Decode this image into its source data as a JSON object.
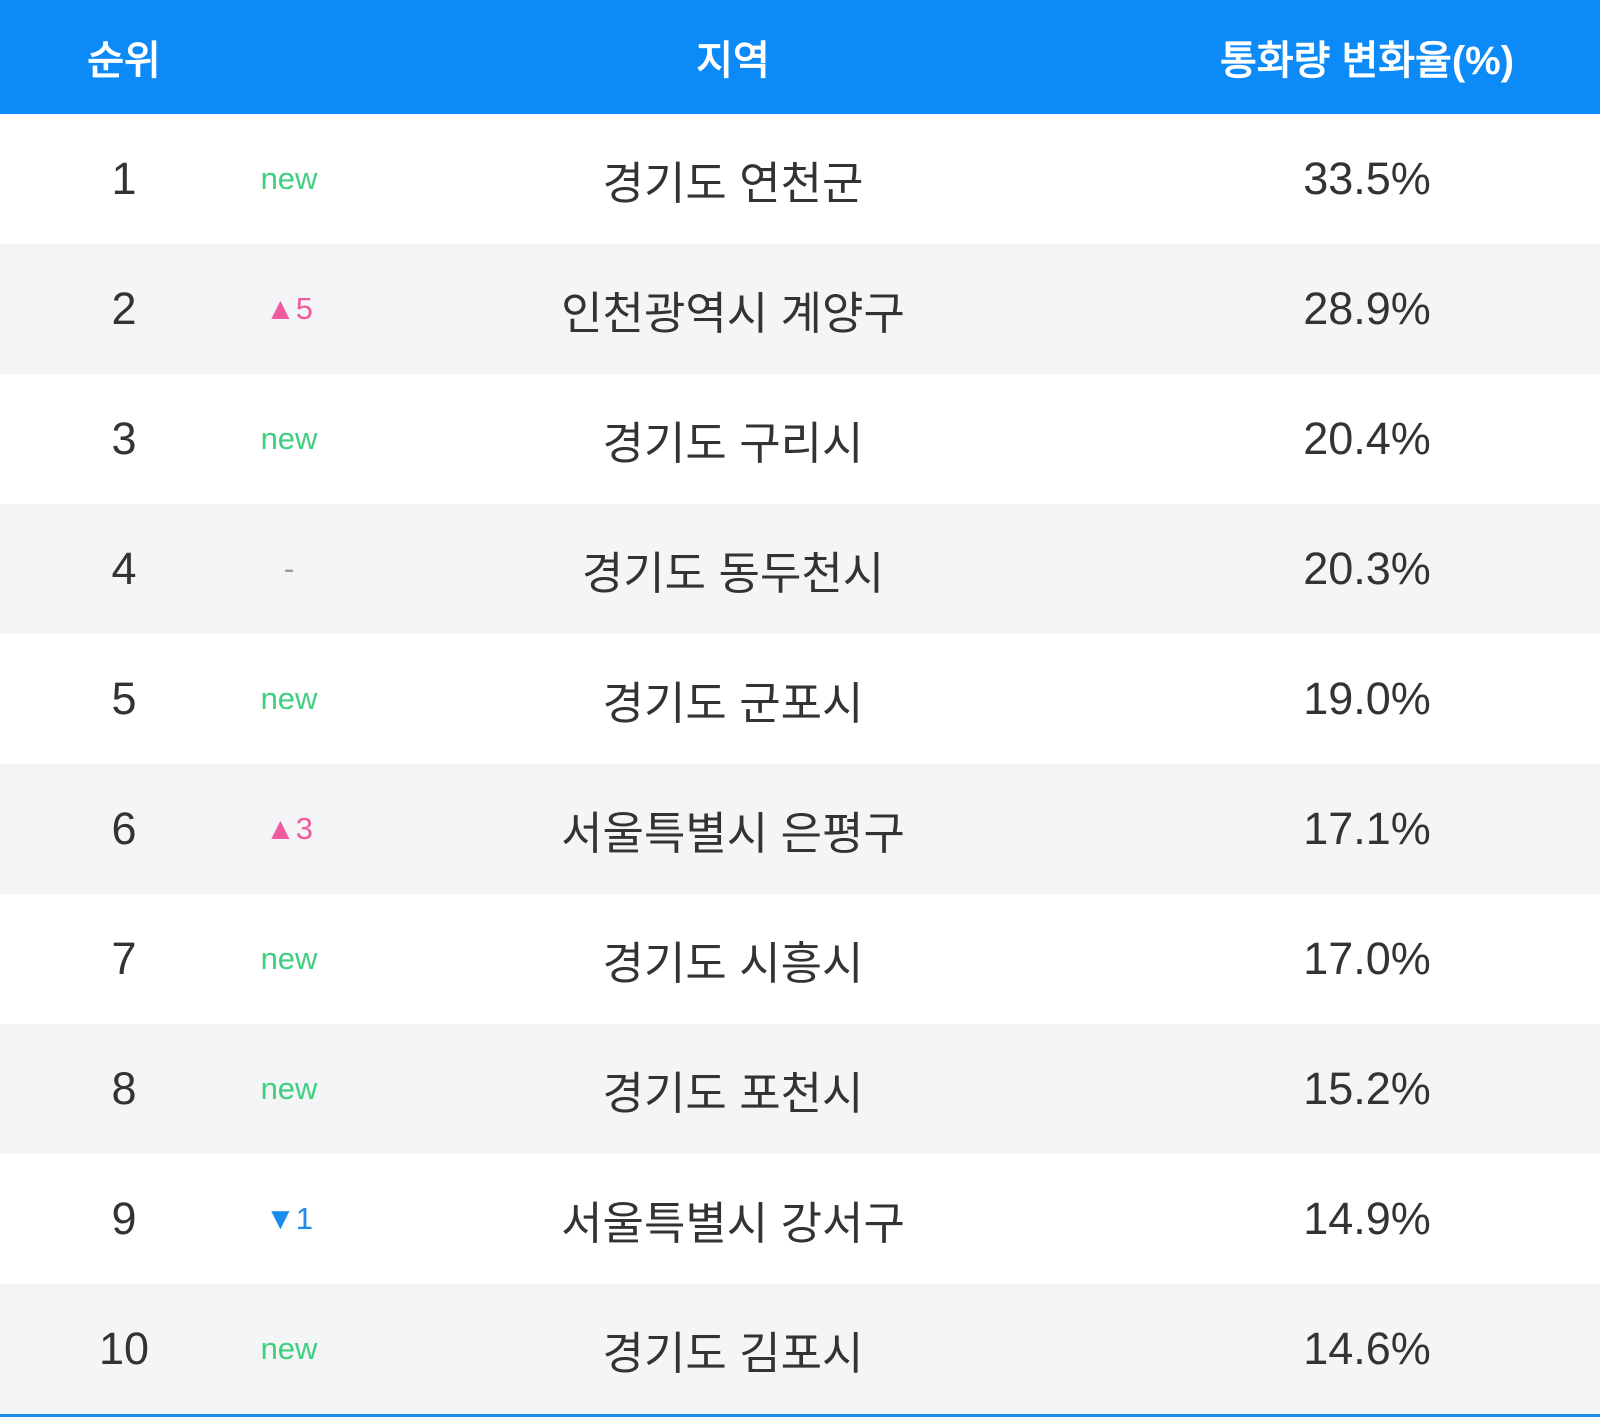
{
  "table": {
    "header": [
      "순위",
      "지역",
      "통화량 변화율(%)"
    ],
    "rows": [
      {
        "rank": 1,
        "change": "new",
        "change_color": "#3fd07f",
        "region": "경기도 연천군",
        "value": "33.5%"
      },
      {
        "rank": 2,
        "change": "▲5",
        "change_color": "#ef5b9c",
        "region": "인천광역시 계양구",
        "value": "28.9%"
      },
      {
        "rank": 3,
        "change": "new",
        "change_color": "#3fd07f",
        "region": "경기도 구리시",
        "value": "20.4%"
      },
      {
        "rank": 4,
        "change": "-",
        "change_color": "#999999",
        "region": "경기도 동두천시",
        "value": "20.3%"
      },
      {
        "rank": 5,
        "change": "new",
        "change_color": "#3fd07f",
        "region": "경기도 군포시",
        "value": "19.0%"
      },
      {
        "rank": 6,
        "change": "▲3",
        "change_color": "#ef5b9c",
        "region": "서울특별시 은평구",
        "value": "17.1%"
      },
      {
        "rank": 7,
        "change": "new",
        "change_color": "#3fd07f",
        "region": "경기도 시흥시",
        "value": "17.0%"
      },
      {
        "rank": 8,
        "change": "new",
        "change_color": "#3fd07f",
        "region": "경기도 포천시",
        "value": "15.2%"
      },
      {
        "rank": 9,
        "change": "▼1",
        "change_color": "#1a8cf0",
        "region": "서울특별시 강서구",
        "value": "14.9%"
      },
      {
        "rank": 10,
        "change": "new",
        "change_color": "#3fd07f",
        "region": "경기도 김포시",
        "value": "14.6%"
      }
    ]
  }
}
